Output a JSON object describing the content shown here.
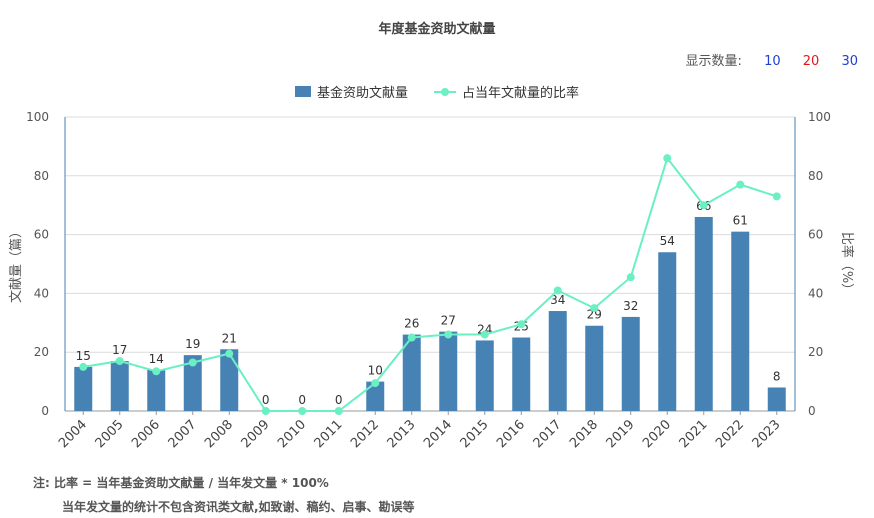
{
  "chart_title": "年度基金资助文献量",
  "display_count": {
    "label": "显示数量:",
    "options": [
      {
        "label": "10",
        "color": "#1e3fd6"
      },
      {
        "label": "20",
        "color": "#e0181c"
      },
      {
        "label": "30",
        "color": "#1e3fd6"
      }
    ]
  },
  "chart_data": {
    "type": "bar+line",
    "categories": [
      "2004",
      "2005",
      "2006",
      "2007",
      "2008",
      "2009",
      "2010",
      "2011",
      "2012",
      "2013",
      "2014",
      "2015",
      "2016",
      "2017",
      "2018",
      "2019",
      "2020",
      "2021",
      "2022",
      "2023"
    ],
    "series": [
      {
        "name": "基金资助文献量",
        "type": "bar",
        "axis": "left",
        "color": "#4682b4",
        "values": [
          15,
          17,
          14,
          19,
          21,
          0,
          0,
          0,
          10,
          26,
          27,
          24,
          25,
          34,
          29,
          32,
          54,
          66,
          61,
          8
        ]
      },
      {
        "name": "占当年文献量的比率",
        "type": "line",
        "axis": "right",
        "color": "#6af0c2",
        "values": [
          15,
          17,
          13.5,
          16.5,
          19.5,
          0,
          0,
          0,
          9.5,
          25,
          26,
          26,
          29.5,
          41,
          35,
          45.5,
          86,
          70,
          77,
          73
        ]
      }
    ],
    "ylabel_left": "文献量（篇）",
    "ylabel_right": "比率（%）",
    "ylim_left": [
      0,
      100
    ],
    "ylim_right": [
      0,
      100
    ],
    "yticks": [
      0,
      20,
      40,
      60,
      80,
      100
    ],
    "grid": true,
    "legend_position": "top-center"
  },
  "notes": {
    "line1": "注:   比率 = 当年基金资助文献量 / 当年发文量 * 100%",
    "line2": "当年发文量的统计不包含资讯类文献,如致谢、稿约、启事、勘误等"
  }
}
